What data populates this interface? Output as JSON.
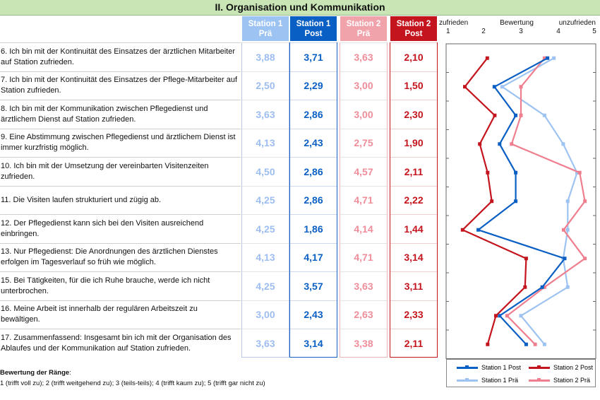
{
  "title": "II. Organisation und Kommunikation",
  "columns": [
    {
      "label": "Station 1\nPrä",
      "bg": "#9dc3f2",
      "fg": "#9dbdf0"
    },
    {
      "label": "Station 1\nPost",
      "bg": "#0a5fc4",
      "fg": "#0a5fc4"
    },
    {
      "label": "Station 2\nPrä",
      "bg": "#f1a3ab",
      "fg": "#ef8d9a"
    },
    {
      "label": "Station 2\nPost",
      "bg": "#c4141d",
      "fg": "#c4141d"
    }
  ],
  "questions": [
    {
      "text": "6. Ich bin mit der Kontinuität des Einsatzes der ärztlichen Mitarbeiter auf Station zufrieden.",
      "vals": [
        "3,88",
        "3,71",
        "3,63",
        "2,10"
      ]
    },
    {
      "text": "7. Ich bin mit der Kontinuität des Einsatzes der Pflege-Mitarbeiter auf Station zufrieden.",
      "vals": [
        "2,50",
        "2,29",
        "3,00",
        "1,50"
      ]
    },
    {
      "text": "8. Ich bin mit der Kommunikation zwischen Pflegedienst und ärztlichem Dienst auf Station zufrieden.",
      "vals": [
        "3,63",
        "2,86",
        "3,00",
        "2,30"
      ]
    },
    {
      "text": "9. Eine Abstimmung zwischen Pflegedienst und ärztlichem Dienst ist immer kurzfristig möglich.",
      "vals": [
        "4,13",
        "2,43",
        "2,75",
        "1,90"
      ]
    },
    {
      "text": "10. Ich bin mit der Umsetzung der vereinbarten Visitenzeiten zufrieden.",
      "vals": [
        "4,50",
        "2,86",
        "4,57",
        "2,11"
      ]
    },
    {
      "text": "11. Die Visiten laufen strukturiert und zügig ab.",
      "vals": [
        "4,25",
        "2,86",
        "4,71",
        "2,22"
      ]
    },
    {
      "text": "12. Der Pflegedienst kann sich bei den Visiten ausreichend einbringen.",
      "vals": [
        "4,25",
        "1,86",
        "4,14",
        "1,44"
      ]
    },
    {
      "text": "13. Nur Pflegedienst: Die Anordnungen des ärztlichen Dienstes erfolgen im Tagesverlauf so früh wie möglich.",
      "vals": [
        "4,13",
        "4,17",
        "4,71",
        "3,14"
      ]
    },
    {
      "text": "15. Bei Tätigkeiten, für die ich Ruhe brauche, werde ich nicht unterbrochen.",
      "vals": [
        "4,25",
        "3,57",
        "3,63",
        "3,11"
      ]
    },
    {
      "text": "16. Meine Arbeit ist innerhalb der regulären Arbeitszeit zu bewältigen.",
      "vals": [
        "3,00",
        "2,43",
        "2,63",
        "2,33"
      ]
    },
    {
      "text": "17. Zusammenfassend: Insgesamt bin ich mit der Organisation des Ablaufes und der Kommunikation auf Station zufrieden.",
      "vals": [
        "3,63",
        "3,14",
        "3,38",
        "2,11"
      ]
    }
  ],
  "rating_note": {
    "label": "Bewertung der Ränge",
    "scale": "1 (trifft voll zu); 2 (trifft weitgehend zu); 3 (teils-teils); 4 (trifft kaum zu); 5 (trifft gar nicht zu)"
  },
  "chart_data": {
    "type": "line",
    "title": "Bewertung",
    "xlabel_left": "zufrieden",
    "xlabel_right": "unzufrieden",
    "xlim": [
      1,
      5
    ],
    "xticks": [
      "1",
      "2",
      "3",
      "4",
      "5"
    ],
    "orientation": "horizontal-values, vertical-categories",
    "series": [
      {
        "name": "Station 1 Post",
        "color": "#0a5fc4",
        "values": [
          3.71,
          2.29,
          2.86,
          2.43,
          2.86,
          2.86,
          1.86,
          4.17,
          3.57,
          2.43,
          3.14
        ]
      },
      {
        "name": "Station 2 Post",
        "color": "#c4141d",
        "values": [
          2.1,
          1.5,
          2.3,
          1.9,
          2.11,
          2.22,
          1.44,
          3.14,
          3.11,
          2.33,
          2.11
        ]
      },
      {
        "name": "Station 1 Prä",
        "color": "#9dc3f2",
        "values": [
          3.88,
          2.5,
          3.63,
          4.13,
          4.5,
          4.25,
          4.25,
          4.13,
          4.25,
          3.0,
          3.63
        ]
      },
      {
        "name": "Station 2 Prä",
        "color": "#ef7f8e",
        "values": [
          3.63,
          3.0,
          3.0,
          2.75,
          4.57,
          4.71,
          4.14,
          4.71,
          3.63,
          2.63,
          3.38
        ]
      }
    ]
  }
}
